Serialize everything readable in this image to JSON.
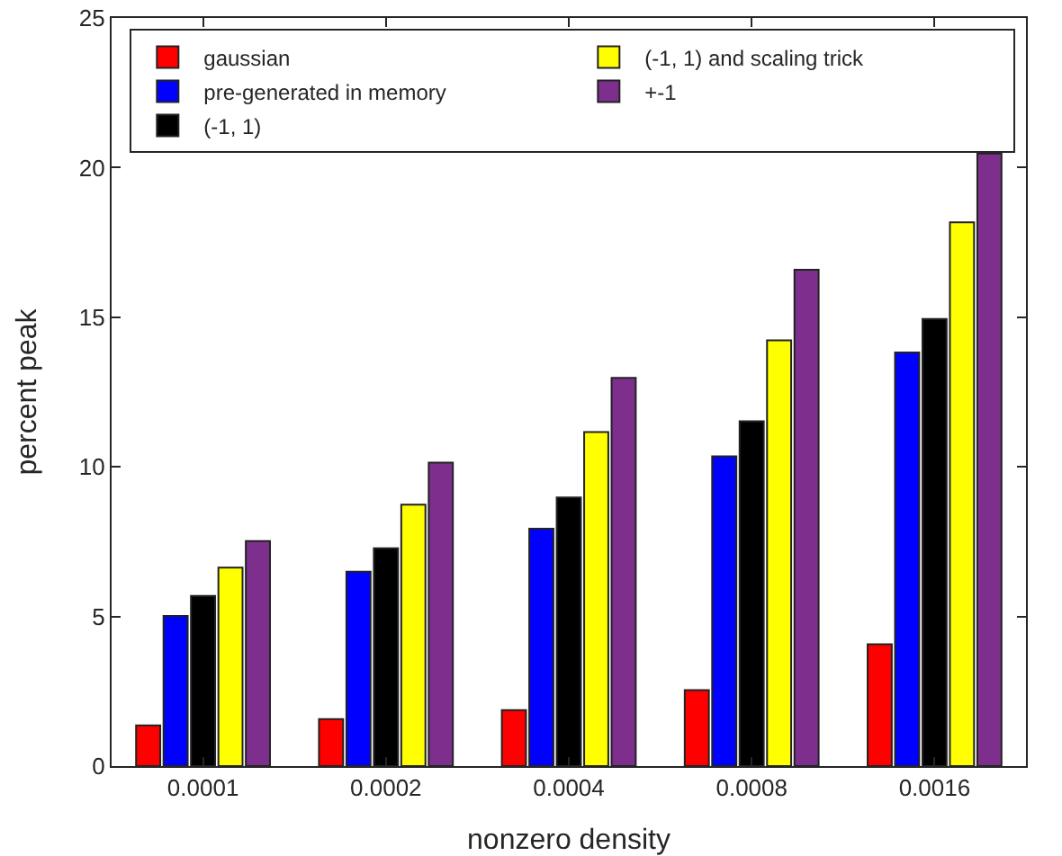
{
  "chart_data": {
    "type": "bar",
    "xlabel": "nonzero density",
    "ylabel": "percent peak",
    "categories": [
      "0.0001",
      "0.0002",
      "0.0004",
      "0.0008",
      "0.0016"
    ],
    "series": [
      {
        "name": "gaussian",
        "color": "#ff0000",
        "values": [
          1.36,
          1.57,
          1.87,
          2.54,
          4.07
        ]
      },
      {
        "name": "pre-generated in memory",
        "color": "#0000ff",
        "values": [
          5.02,
          6.5,
          7.93,
          10.35,
          13.82
        ]
      },
      {
        "name": "(-1, 1)",
        "color": "#000000",
        "values": [
          5.69,
          7.28,
          8.98,
          11.52,
          14.94
        ]
      },
      {
        "name": "(-1, 1) and scaling trick",
        "color": "#ffff00",
        "values": [
          6.63,
          8.74,
          11.16,
          14.23,
          18.17
        ]
      },
      {
        "name": "+-1",
        "color": "#7e2f8e",
        "values": [
          7.52,
          10.14,
          12.97,
          16.59,
          20.47
        ]
      }
    ],
    "ylim": [
      0,
      25
    ],
    "yticks": [
      0,
      5,
      10,
      15,
      20,
      25
    ],
    "grid": false,
    "legend": "top"
  }
}
